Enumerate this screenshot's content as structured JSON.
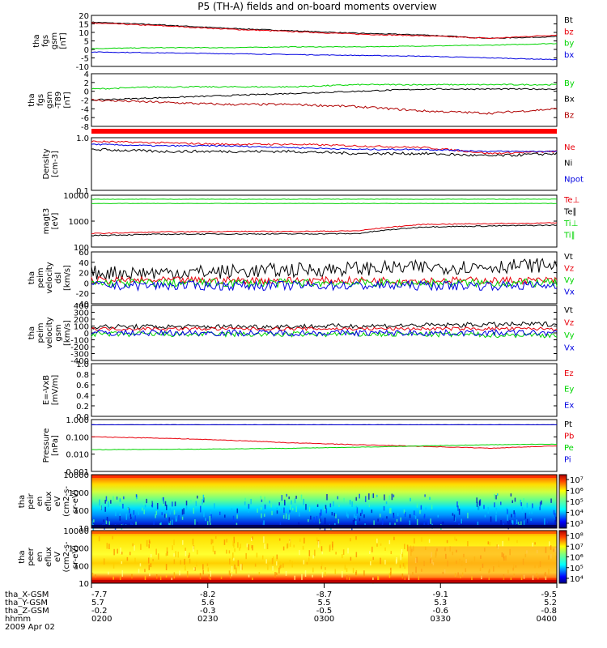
{
  "title": "P5 (TH-A) fields and on-board moments overview",
  "colors": {
    "black": "#000000",
    "red": "#e8000b",
    "green": "#00d400",
    "blue": "#0000e0",
    "dark_red": "#b00000"
  },
  "panels": [
    {
      "id": "fgs_gsm",
      "ylabel": [
        "tha",
        "fgs",
        "gsm",
        "[nT]"
      ],
      "yticks": [
        "20",
        "15",
        "10",
        "5",
        "0",
        "-5",
        "-10"
      ],
      "legend": [
        {
          "text": "Bt",
          "color": "#000000"
        },
        {
          "text": "bz",
          "color": "#e8000b"
        },
        {
          "text": "by",
          "color": "#00d400"
        },
        {
          "text": "bx",
          "color": "#0000e0"
        }
      ]
    },
    {
      "id": "fgs_gsm_t89",
      "ylabel": [
        "tha",
        "fgs",
        "gsm",
        "-T89",
        "[nT]"
      ],
      "yticks": [
        "4",
        "2",
        "0",
        "-2",
        "-4",
        "-6",
        "-8"
      ],
      "legend": [
        {
          "text": "By",
          "color": "#00d400"
        },
        {
          "text": "Bx",
          "color": "#000000"
        },
        {
          "text": "Bz",
          "color": "#b00000"
        }
      ]
    },
    {
      "id": "density",
      "ylabel": [
        "Density",
        "[cm-3]"
      ],
      "yticks": [
        "1.0",
        "0.1"
      ],
      "legend": [
        {
          "text": "Ne",
          "color": "#e8000b"
        },
        {
          "text": "Ni",
          "color": "#000000"
        },
        {
          "text": "Npot",
          "color": "#0000e0"
        }
      ]
    },
    {
      "id": "temperature",
      "ylabel": [
        "magt3",
        "[eV]"
      ],
      "yticks": [
        "10000",
        "1000",
        "100"
      ],
      "legend": [
        {
          "text": "Te⊥",
          "color": "#e8000b"
        },
        {
          "text": "Te∥",
          "color": "#000000"
        },
        {
          "text": "Ti⊥",
          "color": "#00d400"
        },
        {
          "text": "Ti∥",
          "color": "#00d400"
        }
      ]
    },
    {
      "id": "peim_velocity_dsl",
      "ylabel": [
        "tha",
        "peim",
        "velocity",
        "dsl",
        "[km/s]"
      ],
      "yticks": [
        "60",
        "40",
        "20",
        "0",
        "-20",
        "-40"
      ],
      "legend": [
        {
          "text": "Vt",
          "color": "#000000"
        },
        {
          "text": "Vz",
          "color": "#e8000b"
        },
        {
          "text": "Vy",
          "color": "#00d400"
        },
        {
          "text": "Vx",
          "color": "#0000e0"
        }
      ]
    },
    {
      "id": "peim_velocity_gsm",
      "ylabel": [
        "tha",
        "peim",
        "velocity",
        "gsm",
        "[km/s]"
      ],
      "yticks": [
        "400",
        "300",
        "200",
        "100",
        "0",
        "-100",
        "-200",
        "-300",
        "-400"
      ],
      "legend": [
        {
          "text": "Vt",
          "color": "#000000"
        },
        {
          "text": "Vz",
          "color": "#e8000b"
        },
        {
          "text": "Vy",
          "color": "#00d400"
        },
        {
          "text": "Vx",
          "color": "#0000e0"
        }
      ]
    },
    {
      "id": "efield",
      "ylabel": [
        "E=-VxB",
        "[mV/m]"
      ],
      "yticks": [
        "1.0",
        "0.8",
        "0.6",
        "0.4",
        "0.2",
        "0.0"
      ],
      "legend": [
        {
          "text": "Ez",
          "color": "#e8000b"
        },
        {
          "text": "Ey",
          "color": "#00d400"
        },
        {
          "text": "Ex",
          "color": "#0000e0"
        }
      ]
    },
    {
      "id": "pressure",
      "ylabel": [
        "Pressure",
        "[nPa]"
      ],
      "yticks": [
        "1.000",
        "0.100",
        "0.010",
        "0.001"
      ],
      "legend": [
        {
          "text": "Pt",
          "color": "#000000"
        },
        {
          "text": "Pb",
          "color": "#e8000b"
        },
        {
          "text": "Pe",
          "color": "#00d400"
        },
        {
          "text": "Pi",
          "color": "#0000e0"
        }
      ]
    },
    {
      "id": "peir_eflux",
      "ylabel": [
        "tha",
        "peir",
        "en",
        "eflux",
        "eV",
        "(cm2-s-",
        "sr-eV)"
      ],
      "yticks": [
        "10000",
        "1000",
        "100",
        "10"
      ],
      "colorbar": [
        "10⁷",
        "10⁶",
        "10⁵",
        "10⁴",
        "10³"
      ]
    },
    {
      "id": "peer_eflux",
      "ylabel": [
        "tha",
        "peer",
        "en",
        "eflux",
        "eV",
        "(cm2-s-",
        "sr-eV)"
      ],
      "yticks": [
        "10000",
        "1000",
        "100",
        "10"
      ],
      "colorbar": [
        "10⁸",
        "10⁷",
        "10⁶",
        "10⁵",
        "10⁴"
      ]
    }
  ],
  "xaxis": {
    "rows": [
      {
        "label": "tha_X-GSM",
        "values": [
          "-7.7",
          "-8.2",
          "-8.7",
          "-9.1",
          "-9.5"
        ]
      },
      {
        "label": "tha_Y-GSM",
        "values": [
          "5.7",
          "5.6",
          "5.5",
          "5.3",
          "5.2"
        ]
      },
      {
        "label": "tha_Z-GSM",
        "values": [
          "-0.2",
          "-0.3",
          "-0.5",
          "-0.6",
          "-0.8"
        ]
      },
      {
        "label": "hhmm",
        "values": [
          "0200",
          "0230",
          "0300",
          "0330",
          "0400"
        ]
      }
    ],
    "date": "2009 Apr 02"
  },
  "chart_data": {
    "type": "line",
    "title": "P5 (TH-A) fields and on-board moments overview",
    "x_time_ticks": [
      "0200",
      "0230",
      "0300",
      "0330",
      "0400"
    ],
    "date": "2009 Apr 02",
    "panels": [
      {
        "id": "fgs_gsm",
        "ylim": [
          -10,
          20
        ],
        "series": [
          {
            "name": "Bt",
            "values": [
              16,
              14.5,
              12.5,
              11,
              9.5,
              8.5,
              6.5,
              7.5
            ]
          },
          {
            "name": "bz",
            "values": [
              15.5,
              14,
              12,
              10.5,
              9,
              8,
              6.5,
              8.5
            ]
          },
          {
            "name": "by",
            "values": [
              0.5,
              1,
              1,
              1.5,
              1.5,
              2,
              2.5,
              3.5
            ]
          },
          {
            "name": "bx",
            "values": [
              -1.5,
              -2,
              -2.5,
              -3,
              -3.5,
              -4,
              -5,
              -6
            ]
          }
        ]
      },
      {
        "id": "fgs_gsm_t89",
        "ylim": [
          -8,
          4
        ],
        "series": [
          {
            "name": "By",
            "values": [
              0.5,
              1,
              1,
              1,
              1.5,
              1.5,
              1.5,
              1.5
            ]
          },
          {
            "name": "Bx",
            "values": [
              -2,
              -1.5,
              -1,
              -0.5,
              0,
              0.5,
              0.5,
              0.5
            ]
          },
          {
            "name": "Bz",
            "values": [
              -2,
              -2.5,
              -3,
              -3,
              -3.5,
              -4.5,
              -5,
              -4
            ]
          }
        ]
      },
      {
        "id": "density",
        "scale": "log",
        "ylim": [
          0.1,
          1.0
        ],
        "series": [
          {
            "name": "Ne",
            "values": [
              0.85,
              0.8,
              0.75,
              0.75,
              0.7,
              0.65,
              0.5,
              0.55
            ]
          },
          {
            "name": "Ni",
            "values": [
              0.6,
              0.55,
              0.55,
              0.55,
              0.5,
              0.5,
              0.45,
              0.5
            ]
          },
          {
            "name": "Npot",
            "values": [
              0.75,
              0.7,
              0.7,
              0.65,
              0.6,
              0.6,
              0.55,
              0.55
            ]
          }
        ]
      },
      {
        "id": "temperature",
        "scale": "log",
        "ylim": [
          100,
          10000
        ],
        "series": [
          {
            "name": "Te⊥",
            "values": [
              330,
              380,
              400,
              400,
              420,
              750,
              800,
              850
            ]
          },
          {
            "name": "Te∥",
            "values": [
              280,
              310,
              320,
              320,
              330,
              600,
              650,
              700
            ]
          },
          {
            "name": "Ti⊥",
            "values": [
              7000,
              7000,
              7000,
              7000,
              7000,
              7000,
              7000,
              7000
            ]
          },
          {
            "name": "Ti∥",
            "values": [
              4800,
              4800,
              4800,
              4800,
              4800,
              4800,
              4800,
              4800
            ]
          }
        ]
      },
      {
        "id": "peim_velocity_dsl",
        "ylim": [
          -40,
          60
        ],
        "series": [
          {
            "name": "Vt",
            "values": [
              20,
              20,
              22,
              25,
              28,
              30,
              32,
              35
            ]
          },
          {
            "name": "Vz",
            "values": [
              5,
              5,
              5,
              5,
              5,
              5,
              5,
              5
            ]
          },
          {
            "name": "Vy",
            "values": [
              0,
              0,
              0,
              0,
              0,
              0,
              0,
              0
            ]
          },
          {
            "name": "Vx",
            "values": [
              -5,
              -5,
              -5,
              -5,
              -5,
              -5,
              -5,
              -5
            ]
          }
        ]
      },
      {
        "id": "peim_velocity_gsm",
        "ylim": [
          -400,
          400
        ],
        "series": [
          {
            "name": "Vt",
            "values": [
              90,
              90,
              90,
              95,
              100,
              110,
              120,
              130
            ]
          },
          {
            "name": "Vz",
            "values": [
              60,
              60,
              60,
              60,
              60,
              60,
              60,
              60
            ]
          },
          {
            "name": "Vy",
            "values": [
              -20,
              -20,
              -20,
              -20,
              -20,
              -20,
              -30,
              -30
            ]
          },
          {
            "name": "Vx",
            "values": [
              0,
              0,
              0,
              0,
              0,
              0,
              0,
              0
            ]
          }
        ]
      },
      {
        "id": "efield",
        "ylim": [
          0,
          1
        ],
        "series": []
      },
      {
        "id": "pressure",
        "scale": "log",
        "ylim": [
          0.001,
          1.0
        ],
        "series": [
          {
            "name": "Pt",
            "values": [
              0.5,
              0.5,
              0.5,
              0.5,
              0.5,
              0.5,
              0.5,
              0.5
            ]
          },
          {
            "name": "Pb",
            "values": [
              0.1,
              0.085,
              0.065,
              0.045,
              0.035,
              0.028,
              0.022,
              0.03
            ]
          },
          {
            "name": "Pe",
            "values": [
              0.018,
              0.019,
              0.02,
              0.022,
              0.025,
              0.03,
              0.035,
              0.038
            ]
          },
          {
            "name": "Pi",
            "values": [
              0.5,
              0.5,
              0.5,
              0.5,
              0.5,
              0.5,
              0.5,
              0.5
            ]
          }
        ]
      }
    ]
  }
}
